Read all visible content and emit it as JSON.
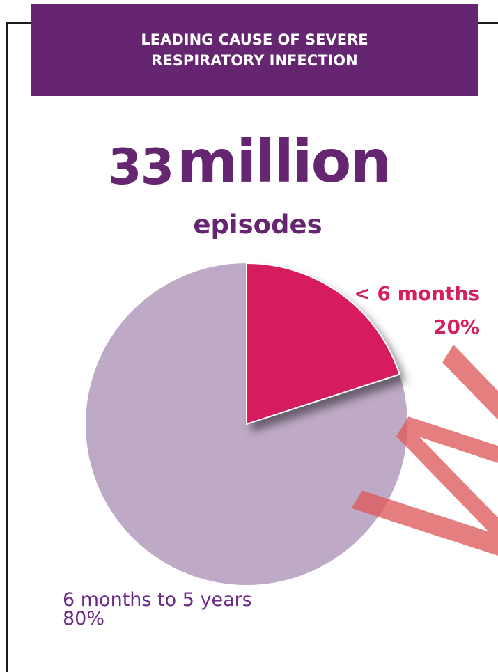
{
  "banner": {
    "line1": "LEADING CAUSE OF SEVERE",
    "line2": "RESPIRATORY INFECTION"
  },
  "headline": {
    "number": "33",
    "unit": "million",
    "sub": "episodes"
  },
  "watermark": "W",
  "colors": {
    "banner": "#652570",
    "small_slice": "#d61f5e",
    "large_slice": "#bea9c6",
    "text_purple": "#652570"
  },
  "chart_data": {
    "type": "pie",
    "title": "",
    "slices": [
      {
        "label": "< 6 months",
        "value": 20,
        "value_label": "20%",
        "color": "#d61f5e"
      },
      {
        "label": "6 months to 5 years",
        "value": 80,
        "value_label": "80%",
        "color": "#bea9c6"
      }
    ]
  }
}
